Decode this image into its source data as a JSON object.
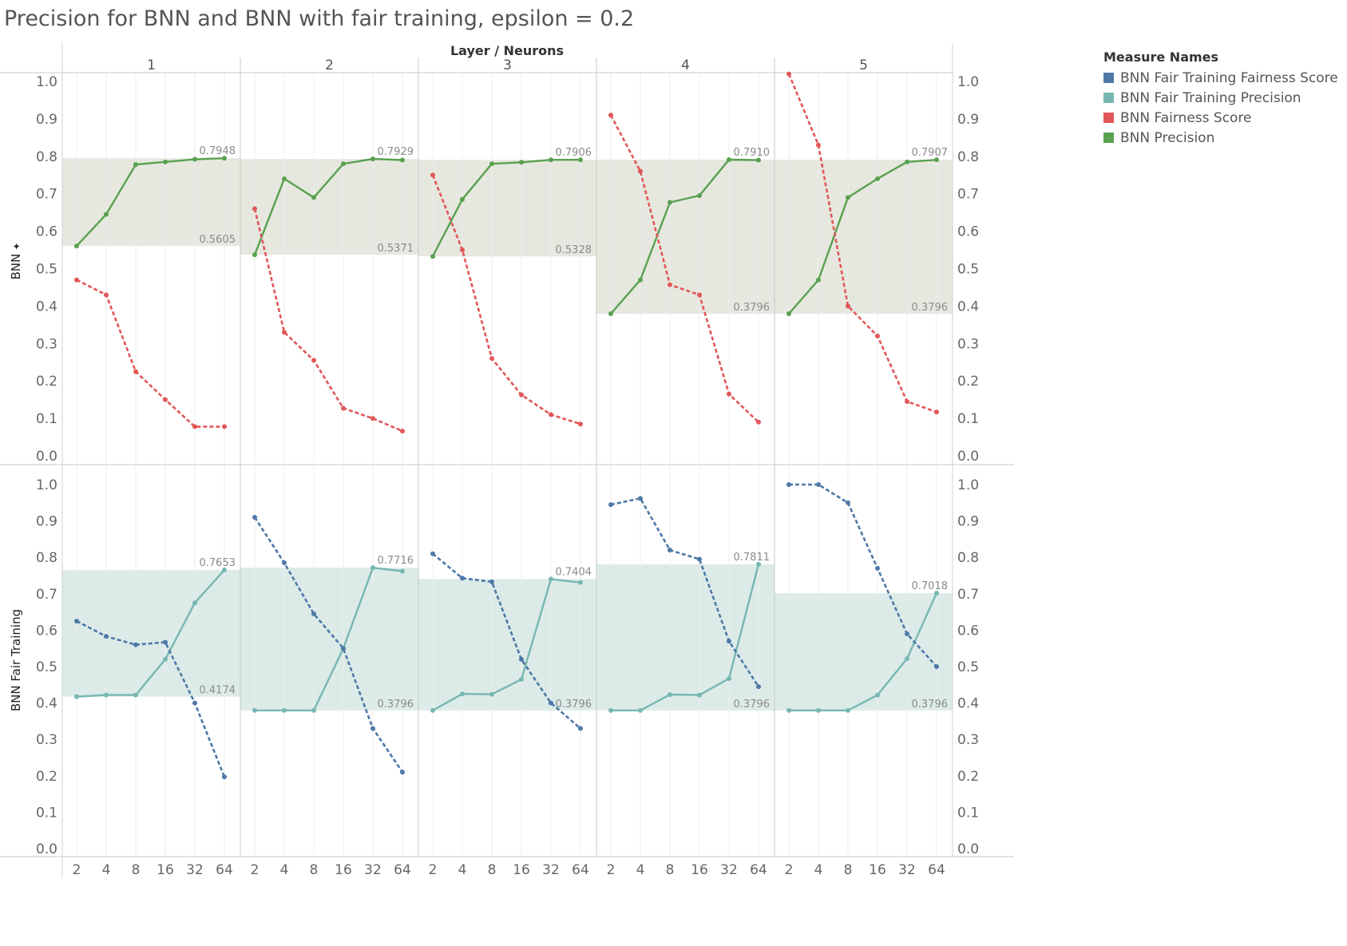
{
  "chart_data": {
    "type": "line",
    "title": "Precision for BNN and BNN with fair training, epsilon = 0.2",
    "column_header": "Layer / Neurons",
    "layers": [
      "1",
      "2",
      "3",
      "4",
      "5"
    ],
    "x_ticks": [
      "2",
      "4",
      "8",
      "16",
      "32",
      "64"
    ],
    "ylim": [
      0,
      1
    ],
    "y_ticks": [
      "0.0",
      "0.1",
      "0.2",
      "0.3",
      "0.4",
      "0.5",
      "0.6",
      "0.7",
      "0.8",
      "0.9",
      "1.0"
    ],
    "legend_title": "Measure Names",
    "legend": [
      {
        "name": "BNN Fair Training Fairness Score",
        "color": "#4e79a7"
      },
      {
        "name": "BNN Fair Training Precision",
        "color": "#76b7b2"
      },
      {
        "name": "BNN Fairness Score",
        "color": "#e15759"
      },
      {
        "name": "BNN Precision",
        "color": "#59a14f"
      }
    ],
    "rows": [
      {
        "label": "BNN",
        "marker": "✦",
        "band_color": "#e6e8df",
        "panels": [
          {
            "band": [
              "0.5605",
              "0.7948"
            ],
            "series": [
              {
                "name": "BNN Precision",
                "color": "#59a14f",
                "dashed": false,
                "values": [
                  0.5605,
                  0.645,
                  0.778,
                  0.785,
                  0.792,
                  0.7948
                ]
              },
              {
                "name": "BNN Fairness Score",
                "color": "#e15759",
                "dashed": true,
                "values": [
                  0.47,
                  0.43,
                  0.225,
                  0.15,
                  0.078,
                  0.078
                ]
              }
            ]
          },
          {
            "band": [
              "0.5371",
              "0.7929"
            ],
            "series": [
              {
                "name": "BNN Precision",
                "color": "#59a14f",
                "dashed": false,
                "values": [
                  0.5371,
                  0.74,
                  0.69,
                  0.78,
                  0.7929,
                  0.79
                ]
              },
              {
                "name": "BNN Fairness Score",
                "color": "#e15759",
                "dashed": true,
                "values": [
                  0.66,
                  0.33,
                  0.255,
                  0.127,
                  0.1,
                  0.066
                ]
              }
            ]
          },
          {
            "band": [
              "0.5328",
              "0.7906"
            ],
            "series": [
              {
                "name": "BNN Precision",
                "color": "#59a14f",
                "dashed": false,
                "values": [
                  0.5328,
                  0.685,
                  0.78,
                  0.784,
                  0.7906,
                  0.7906
                ]
              },
              {
                "name": "BNN Fairness Score",
                "color": "#e15759",
                "dashed": true,
                "values": [
                  0.75,
                  0.55,
                  0.26,
                  0.163,
                  0.11,
                  0.085
                ]
              }
            ]
          },
          {
            "band": [
              "0.3796",
              "0.7910"
            ],
            "series": [
              {
                "name": "BNN Precision",
                "color": "#59a14f",
                "dashed": false,
                "values": [
                  0.3796,
                  0.47,
                  0.677,
                  0.695,
                  0.791,
                  0.79
                ]
              },
              {
                "name": "BNN Fairness Score",
                "color": "#e15759",
                "dashed": true,
                "values": [
                  0.91,
                  0.76,
                  0.457,
                  0.43,
                  0.165,
                  0.09
                ]
              }
            ]
          },
          {
            "band": [
              "0.3796",
              "0.7907"
            ],
            "series": [
              {
                "name": "BNN Precision",
                "color": "#59a14f",
                "dashed": false,
                "values": [
                  0.3796,
                  0.47,
                  0.69,
                  0.74,
                  0.785,
                  0.7907
                ]
              },
              {
                "name": "BNN Fairness Score",
                "color": "#e15759",
                "dashed": true,
                "values": [
                  1.02,
                  0.83,
                  0.4,
                  0.32,
                  0.145,
                  0.117
                ]
              }
            ]
          }
        ]
      },
      {
        "label": "BNN Fair Training",
        "marker": "",
        "band_color": "#dcebe8",
        "panels": [
          {
            "band": [
              "0.4174",
              "0.7653"
            ],
            "series": [
              {
                "name": "BNN Fair Training Precision",
                "color": "#76b7b2",
                "dashed": false,
                "values": [
                  0.4174,
                  0.422,
                  0.422,
                  0.52,
                  0.675,
                  0.7653
                ]
              },
              {
                "name": "BNN Fair Training Fairness Score",
                "color": "#4e79a7",
                "dashed": true,
                "values": [
                  0.625,
                  0.583,
                  0.56,
                  0.567,
                  0.4,
                  0.197
                ]
              }
            ]
          },
          {
            "band": [
              "0.3796",
              "0.7716"
            ],
            "series": [
              {
                "name": "BNN Fair Training Precision",
                "color": "#76b7b2",
                "dashed": false,
                "values": [
                  0.3796,
                  0.3796,
                  0.3796,
                  0.55,
                  0.7716,
                  0.762
                ]
              },
              {
                "name": "BNN Fair Training Fairness Score",
                "color": "#4e79a7",
                "dashed": true,
                "values": [
                  0.91,
                  0.785,
                  0.645,
                  0.55,
                  0.33,
                  0.21
                ]
              }
            ]
          },
          {
            "band": [
              "0.3796",
              "0.7404"
            ],
            "series": [
              {
                "name": "BNN Fair Training Precision",
                "color": "#76b7b2",
                "dashed": false,
                "values": [
                  0.3796,
                  0.425,
                  0.424,
                  0.465,
                  0.7404,
                  0.731
                ]
              },
              {
                "name": "BNN Fair Training Fairness Score",
                "color": "#4e79a7",
                "dashed": true,
                "values": [
                  0.81,
                  0.743,
                  0.733,
                  0.52,
                  0.4,
                  0.33
                ]
              }
            ]
          },
          {
            "band": [
              "0.3796",
              "0.7811"
            ],
            "series": [
              {
                "name": "BNN Fair Training Precision",
                "color": "#76b7b2",
                "dashed": false,
                "values": [
                  0.3796,
                  0.3796,
                  0.423,
                  0.422,
                  0.467,
                  0.7811
                ]
              },
              {
                "name": "BNN Fair Training Fairness Score",
                "color": "#4e79a7",
                "dashed": true,
                "values": [
                  0.945,
                  0.962,
                  0.82,
                  0.795,
                  0.57,
                  0.445
                ]
              }
            ]
          },
          {
            "band": [
              "0.3796",
              "0.7018"
            ],
            "series": [
              {
                "name": "BNN Fair Training Precision",
                "color": "#76b7b2",
                "dashed": false,
                "values": [
                  0.3796,
                  0.3796,
                  0.3796,
                  0.422,
                  0.522,
                  0.7018
                ]
              },
              {
                "name": "BNN Fair Training Fairness Score",
                "color": "#4e79a7",
                "dashed": true,
                "values": [
                  1.0,
                  1.0,
                  0.95,
                  0.77,
                  0.59,
                  0.5
                ]
              }
            ]
          }
        ]
      }
    ]
  }
}
